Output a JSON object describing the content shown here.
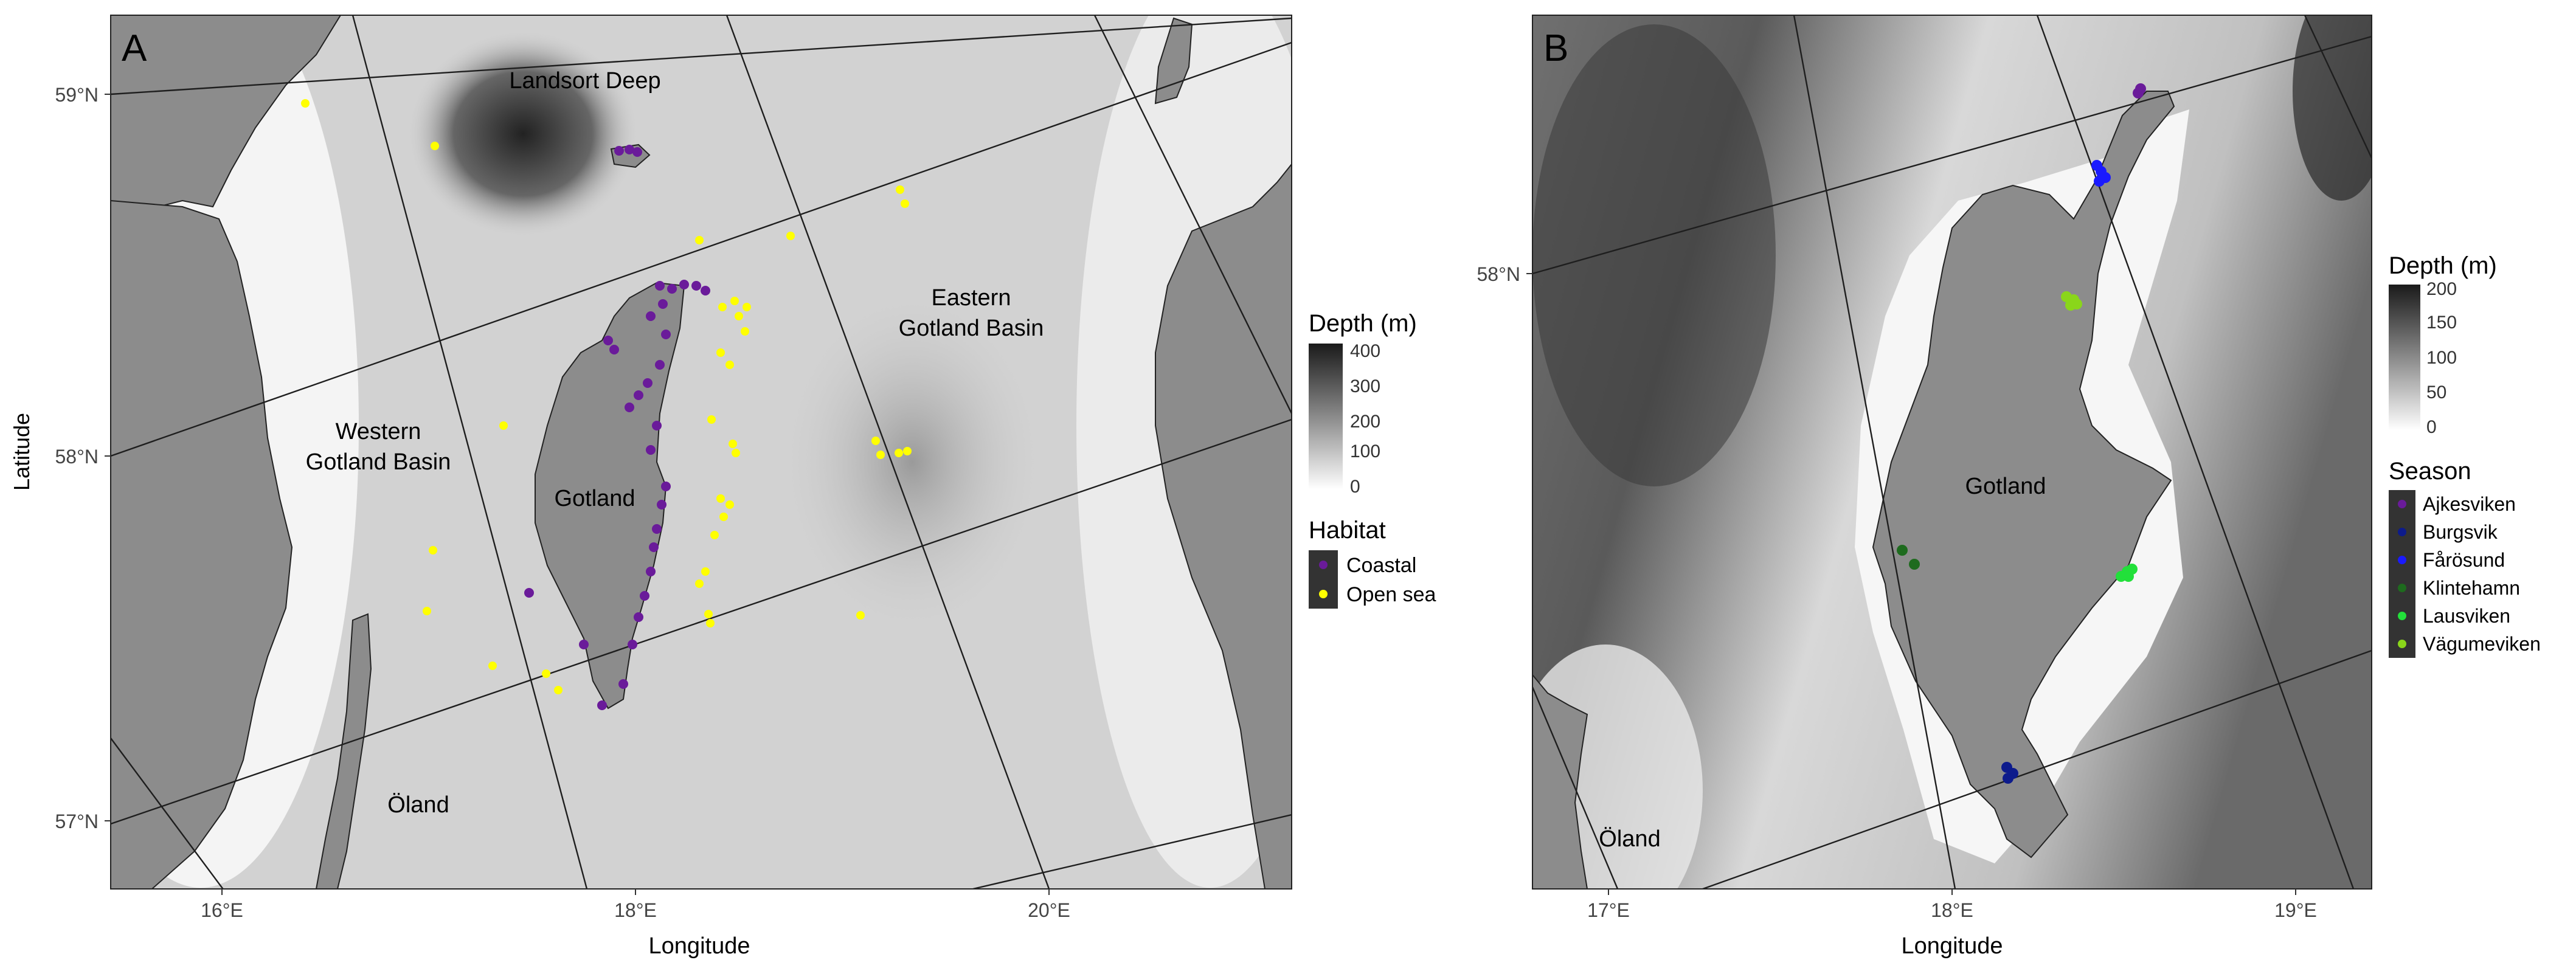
{
  "colors": {
    "land": "#8c8c8c",
    "shallow": "#fbfbfb",
    "deep": "#1c1c1c",
    "coastal": "#6a1b9a",
    "open_sea": "#ffff00"
  },
  "panel_a": {
    "tag": "A",
    "xlabel": "Longitude",
    "ylabel": "Latitude",
    "x_ticks": [
      "16°E",
      "18°E",
      "20°E"
    ],
    "y_ticks": [
      "59°N",
      "58°N",
      "57°N"
    ],
    "places": {
      "landsort": "Landsort Deep",
      "western_1": "Western",
      "western_2": "Gotland Basin",
      "eastern_1": "Eastern",
      "eastern_2": "Gotland Basin",
      "gotland": "Gotland",
      "oland": "Öland"
    },
    "depth_title": "Depth (m)",
    "depth_ticks": [
      "400",
      "300",
      "200",
      "100",
      "0"
    ],
    "habitat_title": "Habitat",
    "habitat": [
      {
        "label": "Coastal",
        "color": "#6a1b9a"
      },
      {
        "label": "Open sea",
        "color": "#ffff00"
      }
    ]
  },
  "panel_b": {
    "tag": "B",
    "xlabel": "Longitude",
    "x_ticks": [
      "17°E",
      "18°E",
      "19°E"
    ],
    "y_ticks": [
      "58°N"
    ],
    "places": {
      "gotland": "Gotland",
      "oland": "Öland"
    },
    "depth_title": "Depth (m)",
    "depth_ticks": [
      "200",
      "150",
      "100",
      "50",
      "0"
    ],
    "season_title": "Season",
    "season": [
      {
        "label": "Ajkesviken",
        "color": "#6a1b9a"
      },
      {
        "label": "Burgsvik",
        "color": "#0d1b8c"
      },
      {
        "label": "Fårösund",
        "color": "#1a1aff"
      },
      {
        "label": "Klintehamn",
        "color": "#1e6b1e"
      },
      {
        "label": "Lausviken",
        "color": "#22e03a"
      },
      {
        "label": "Vägumeviken",
        "color": "#8ad61a"
      }
    ]
  }
}
